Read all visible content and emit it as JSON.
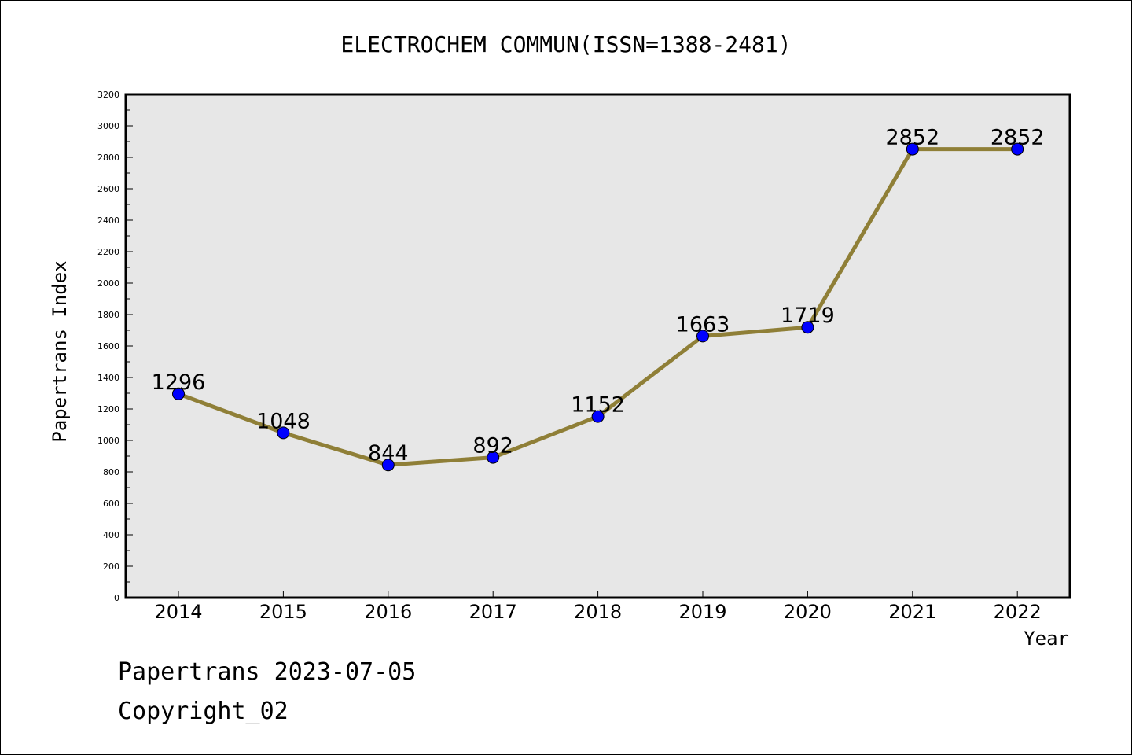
{
  "chart_data": {
    "type": "line",
    "title": "ELECTROCHEM COMMUN(ISSN=1388-2481)",
    "xlabel": "Year",
    "ylabel": "Papertrans Index",
    "categories": [
      "2014",
      "2015",
      "2016",
      "2017",
      "2018",
      "2019",
      "2020",
      "2021",
      "2022"
    ],
    "series": [
      {
        "values": [
          1296,
          1048,
          844,
          892,
          1152,
          1663,
          1719,
          2852,
          2852
        ],
        "line_color": "#8f7f37",
        "marker_color": "#0000ff"
      }
    ],
    "data_labels": [
      "1296",
      "1048",
      "844",
      "892",
      "1152",
      "1663",
      "1719",
      "2852",
      "2852"
    ],
    "ylim": [
      0,
      3200
    ],
    "yticks": [
      "0",
      "200",
      "400",
      "600",
      "800",
      "1000",
      "1200",
      "1400",
      "1600",
      "1800",
      "2000",
      "2200",
      "2400",
      "2600",
      "2800",
      "3000",
      "3200"
    ],
    "plot_background": "#e7e7e7",
    "grid": false,
    "legend": "none"
  },
  "footer": {
    "line1": "Papertrans 2023-07-05",
    "line2": "Copyright_02"
  }
}
